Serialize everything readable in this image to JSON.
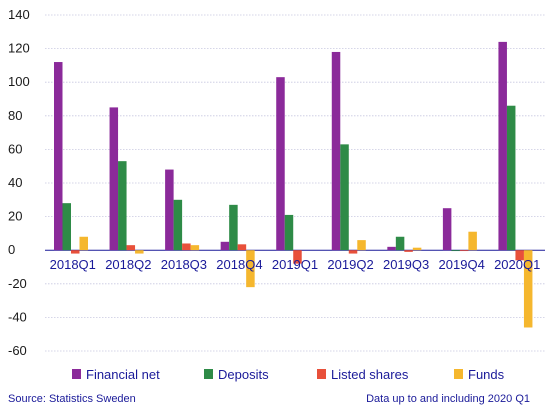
{
  "chart_data": {
    "type": "bar",
    "categories": [
      "2018Q1",
      "2018Q2",
      "2018Q3",
      "2018Q4",
      "2019Q1",
      "2019Q2",
      "2019Q3",
      "2019Q4",
      "2020Q1"
    ],
    "series": [
      {
        "name": "Financial net",
        "color": "#8b2a9a",
        "values": [
          112,
          85,
          48,
          5,
          103,
          118,
          2,
          25,
          124
        ]
      },
      {
        "name": "Deposits",
        "color": "#2e8b47",
        "values": [
          28,
          53,
          30,
          27,
          21,
          63,
          8,
          -0.5,
          86
        ]
      },
      {
        "name": "Listed shares",
        "color": "#e8503a",
        "values": [
          -2,
          3,
          4,
          3.5,
          -8,
          -2,
          -1,
          -0.5,
          -6
        ]
      },
      {
        "name": "Funds",
        "color": "#f5b72e",
        "values": [
          8,
          -2,
          3,
          -22,
          0,
          6,
          1.5,
          11,
          -46
        ]
      }
    ],
    "yticks": [
      140,
      120,
      100,
      80,
      60,
      40,
      20,
      0,
      -20,
      -40,
      -60
    ],
    "ylim": [
      -60,
      140
    ],
    "grid": true,
    "legend_position": "bottom"
  },
  "footer": {
    "source": "Source: Statistics Sweden",
    "note": "Data up to and including 2020 Q1"
  }
}
